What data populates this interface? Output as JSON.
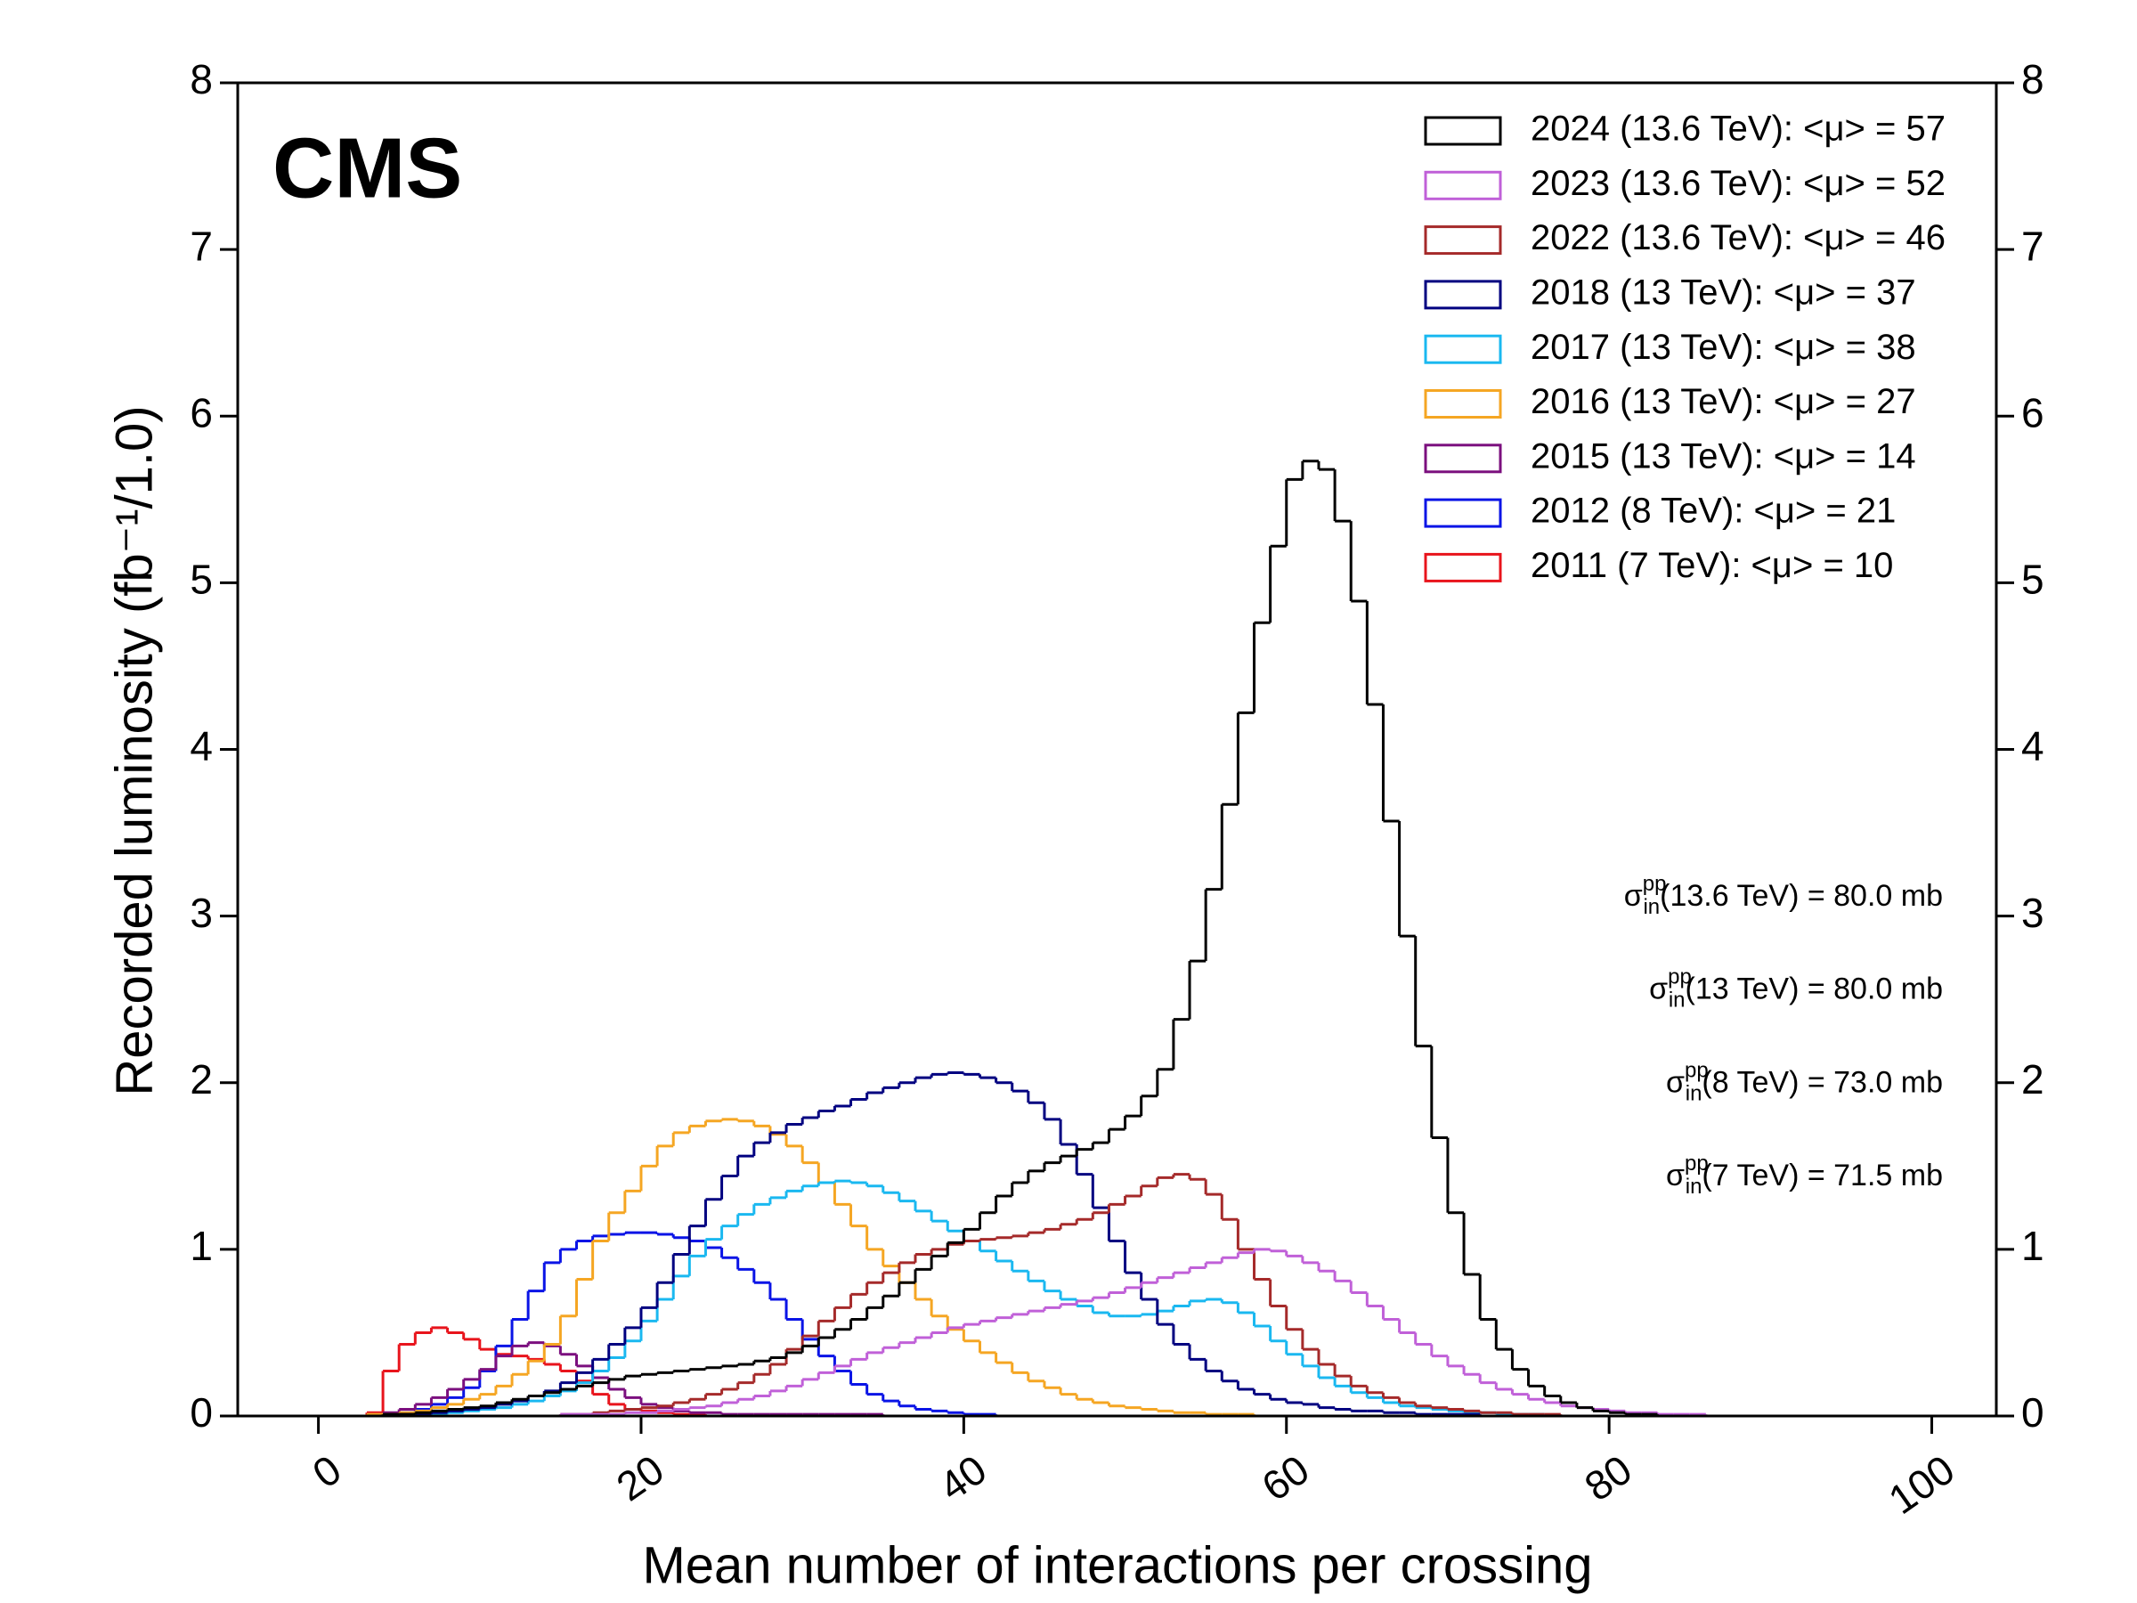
{
  "chart_data": {
    "type": "histogram",
    "title": "CMS",
    "x_label": "Mean number of interactions per crossing",
    "y_label": "Recorded luminosity (fb⁻¹/1.0)",
    "xlim": [
      -5,
      104
    ],
    "ylim": [
      0,
      8
    ],
    "xticks": [
      0,
      20,
      40,
      60,
      80,
      100
    ],
    "yticks": [
      0,
      1,
      2,
      3,
      4,
      5,
      6,
      7,
      8
    ],
    "right_axis": true,
    "legend": "upper right",
    "bins": [
      0,
      1,
      2,
      3,
      4,
      5,
      6,
      7,
      8,
      9,
      10,
      11,
      12,
      13,
      14,
      15,
      16,
      17,
      18,
      19,
      20,
      21,
      22,
      23,
      24,
      25,
      26,
      27,
      28,
      29,
      30,
      31,
      32,
      33,
      34,
      35,
      36,
      37,
      38,
      39,
      40,
      41,
      42,
      43,
      44,
      45,
      46,
      47,
      48,
      49,
      50,
      51,
      52,
      53,
      54,
      55,
      56,
      57,
      58,
      59,
      60,
      61,
      62,
      63,
      64,
      65,
      66,
      67,
      68,
      69,
      70,
      71,
      72,
      73,
      74,
      75,
      76,
      77,
      78,
      79,
      80,
      81,
      82,
      83,
      84,
      85,
      86,
      87,
      88,
      89,
      90,
      91,
      92,
      93,
      94,
      95,
      96,
      97,
      98,
      99,
      100
    ],
    "series": [
      {
        "name": "2024 (13.6 TeV): <μ> = 57",
        "color": "#000000",
        "values": [
          0,
          0,
          0,
          0,
          0.01,
          0.01,
          0.02,
          0.03,
          0.04,
          0.05,
          0.06,
          0.08,
          0.1,
          0.12,
          0.14,
          0.16,
          0.18,
          0.2,
          0.22,
          0.24,
          0.25,
          0.26,
          0.27,
          0.28,
          0.29,
          0.3,
          0.31,
          0.33,
          0.35,
          0.38,
          0.42,
          0.47,
          0.52,
          0.58,
          0.65,
          0.72,
          0.8,
          0.88,
          0.96,
          1.04,
          1.12,
          1.22,
          1.32,
          1.4,
          1.47,
          1.52,
          1.56,
          1.6,
          1.64,
          1.72,
          1.8,
          1.92,
          2.08,
          2.38,
          2.73,
          3.16,
          3.67,
          4.22,
          4.76,
          5.22,
          5.62,
          5.73,
          5.68,
          5.37,
          4.89,
          4.27,
          3.57,
          2.88,
          2.22,
          1.67,
          1.22,
          0.85,
          0.58,
          0.4,
          0.28,
          0.18,
          0.12,
          0.08,
          0.05,
          0.03,
          0.02,
          0.01,
          0.01,
          0,
          0,
          0,
          0,
          0,
          0,
          0,
          0,
          0,
          0,
          0,
          0,
          0,
          0,
          0,
          0,
          0
        ]
      },
      {
        "name": "2023 (13.6 TeV): <μ> = 52",
        "color": "#c060d8",
        "values": [
          0,
          0,
          0,
          0,
          0,
          0,
          0,
          0,
          0,
          0,
          0,
          0,
          0,
          0,
          0,
          0.01,
          0.01,
          0.01,
          0.01,
          0.02,
          0.02,
          0.03,
          0.04,
          0.05,
          0.06,
          0.08,
          0.1,
          0.12,
          0.15,
          0.18,
          0.22,
          0.26,
          0.3,
          0.34,
          0.38,
          0.41,
          0.44,
          0.47,
          0.5,
          0.53,
          0.55,
          0.57,
          0.59,
          0.61,
          0.63,
          0.65,
          0.67,
          0.69,
          0.71,
          0.74,
          0.77,
          0.8,
          0.83,
          0.86,
          0.89,
          0.92,
          0.95,
          0.98,
          1.0,
          0.99,
          0.96,
          0.92,
          0.87,
          0.81,
          0.74,
          0.66,
          0.58,
          0.5,
          0.43,
          0.36,
          0.3,
          0.25,
          0.2,
          0.16,
          0.13,
          0.1,
          0.08,
          0.06,
          0.05,
          0.04,
          0.03,
          0.02,
          0.02,
          0.01,
          0.01,
          0.01,
          0,
          0,
          0,
          0,
          0,
          0,
          0,
          0,
          0,
          0,
          0,
          0,
          0,
          0
        ]
      },
      {
        "name": "2022 (13.6 TeV): <μ> = 46",
        "color": "#a52a2a",
        "values": [
          0,
          0,
          0,
          0,
          0,
          0,
          0,
          0,
          0,
          0,
          0,
          0,
          0,
          0,
          0,
          0.01,
          0.01,
          0.02,
          0.03,
          0.04,
          0.05,
          0.06,
          0.08,
          0.1,
          0.13,
          0.16,
          0.2,
          0.25,
          0.31,
          0.4,
          0.48,
          0.57,
          0.65,
          0.73,
          0.8,
          0.86,
          0.92,
          0.97,
          1.0,
          1.03,
          1.05,
          1.06,
          1.07,
          1.08,
          1.1,
          1.12,
          1.15,
          1.18,
          1.22,
          1.27,
          1.32,
          1.38,
          1.43,
          1.45,
          1.42,
          1.33,
          1.18,
          1.0,
          0.82,
          0.66,
          0.52,
          0.4,
          0.31,
          0.24,
          0.18,
          0.14,
          0.11,
          0.08,
          0.06,
          0.05,
          0.04,
          0.03,
          0.02,
          0.02,
          0.01,
          0.01,
          0.01,
          0,
          0,
          0,
          0,
          0,
          0,
          0,
          0,
          0,
          0,
          0,
          0,
          0,
          0,
          0,
          0,
          0,
          0,
          0,
          0,
          0,
          0,
          0
        ]
      },
      {
        "name": "2018 (13 TeV): <μ> = 37",
        "color": "#000080",
        "values": [
          0,
          0,
          0,
          0,
          0,
          0.01,
          0.01,
          0.02,
          0.03,
          0.04,
          0.05,
          0.07,
          0.09,
          0.12,
          0.15,
          0.2,
          0.26,
          0.34,
          0.43,
          0.53,
          0.65,
          0.8,
          0.97,
          1.14,
          1.3,
          1.44,
          1.56,
          1.64,
          1.7,
          1.75,
          1.79,
          1.83,
          1.86,
          1.9,
          1.94,
          1.97,
          2.0,
          2.03,
          2.05,
          2.06,
          2.05,
          2.03,
          2.0,
          1.95,
          1.88,
          1.78,
          1.63,
          1.45,
          1.25,
          1.05,
          0.86,
          0.7,
          0.55,
          0.43,
          0.34,
          0.27,
          0.21,
          0.16,
          0.13,
          0.1,
          0.08,
          0.07,
          0.05,
          0.04,
          0.03,
          0.03,
          0.02,
          0.02,
          0.01,
          0.01,
          0.01,
          0.01,
          0,
          0,
          0,
          0,
          0,
          0,
          0,
          0,
          0,
          0,
          0,
          0,
          0,
          0,
          0,
          0,
          0,
          0,
          0,
          0,
          0,
          0,
          0,
          0,
          0,
          0,
          0,
          0
        ]
      },
      {
        "name": "2017 (13 TeV): <μ> = 38",
        "color": "#1ab8f0",
        "values": [
          0,
          0,
          0,
          0,
          0,
          0,
          0,
          0.01,
          0.02,
          0.03,
          0.04,
          0.05,
          0.07,
          0.09,
          0.12,
          0.15,
          0.2,
          0.27,
          0.35,
          0.45,
          0.57,
          0.7,
          0.84,
          0.96,
          1.06,
          1.14,
          1.21,
          1.27,
          1.31,
          1.35,
          1.38,
          1.4,
          1.41,
          1.4,
          1.38,
          1.34,
          1.29,
          1.23,
          1.17,
          1.11,
          1.05,
          0.99,
          0.93,
          0.87,
          0.81,
          0.75,
          0.7,
          0.66,
          0.62,
          0.6,
          0.6,
          0.61,
          0.63,
          0.66,
          0.69,
          0.7,
          0.68,
          0.62,
          0.54,
          0.45,
          0.37,
          0.3,
          0.23,
          0.18,
          0.14,
          0.11,
          0.08,
          0.06,
          0.05,
          0.04,
          0.03,
          0.02,
          0.02,
          0.01,
          0.01,
          0.01,
          0,
          0,
          0,
          0,
          0,
          0,
          0,
          0,
          0,
          0,
          0,
          0,
          0,
          0,
          0,
          0,
          0,
          0,
          0,
          0,
          0,
          0,
          0,
          0
        ]
      },
      {
        "name": "2016 (13 TeV): <μ> = 27",
        "color": "#f5a623",
        "values": [
          0,
          0,
          0,
          0.01,
          0.01,
          0.02,
          0.03,
          0.05,
          0.07,
          0.1,
          0.13,
          0.18,
          0.25,
          0.33,
          0.43,
          0.6,
          0.82,
          1.05,
          1.22,
          1.35,
          1.5,
          1.62,
          1.7,
          1.74,
          1.77,
          1.78,
          1.77,
          1.74,
          1.69,
          1.62,
          1.52,
          1.4,
          1.27,
          1.14,
          1.0,
          0.9,
          0.8,
          0.7,
          0.6,
          0.52,
          0.45,
          0.38,
          0.32,
          0.26,
          0.21,
          0.17,
          0.13,
          0.1,
          0.08,
          0.06,
          0.05,
          0.04,
          0.03,
          0.02,
          0.02,
          0.01,
          0.01,
          0.01,
          0,
          0,
          0,
          0,
          0,
          0,
          0,
          0,
          0,
          0,
          0,
          0,
          0,
          0,
          0,
          0,
          0,
          0,
          0,
          0,
          0,
          0,
          0,
          0,
          0,
          0,
          0,
          0,
          0,
          0,
          0,
          0,
          0,
          0,
          0,
          0,
          0,
          0,
          0,
          0,
          0,
          0
        ]
      },
      {
        "name": "2015 (13 TeV): <μ> = 14",
        "color": "#7b0f7e",
        "values": [
          0,
          0,
          0,
          0.01,
          0.02,
          0.04,
          0.07,
          0.11,
          0.16,
          0.22,
          0.28,
          0.36,
          0.42,
          0.44,
          0.42,
          0.37,
          0.3,
          0.23,
          0.16,
          0.11,
          0.07,
          0.05,
          0.03,
          0.02,
          0.02,
          0.01,
          0.01,
          0.01,
          0.01,
          0.01,
          0.01,
          0.01,
          0.01,
          0.01,
          0.01,
          0,
          0,
          0,
          0,
          0,
          0,
          0,
          0,
          0,
          0,
          0,
          0,
          0,
          0,
          0,
          0,
          0,
          0,
          0,
          0,
          0,
          0,
          0,
          0,
          0,
          0,
          0,
          0,
          0,
          0,
          0,
          0,
          0,
          0,
          0,
          0,
          0,
          0,
          0,
          0,
          0,
          0,
          0,
          0,
          0,
          0,
          0,
          0,
          0,
          0,
          0,
          0,
          0,
          0,
          0,
          0,
          0,
          0,
          0,
          0,
          0,
          0,
          0,
          0,
          0
        ]
      },
      {
        "name": "2012 (8 TeV): <μ> = 21",
        "color": "#0a14e6",
        "values": [
          0,
          0,
          0,
          0,
          0,
          0.02,
          0.04,
          0.07,
          0.11,
          0.17,
          0.27,
          0.42,
          0.58,
          0.75,
          0.92,
          1.0,
          1.05,
          1.08,
          1.09,
          1.1,
          1.1,
          1.09,
          1.07,
          1.05,
          1.01,
          0.95,
          0.88,
          0.8,
          0.7,
          0.58,
          0.46,
          0.36,
          0.27,
          0.19,
          0.13,
          0.09,
          0.06,
          0.04,
          0.03,
          0.02,
          0.01,
          0.01,
          0,
          0,
          0,
          0,
          0,
          0,
          0,
          0,
          0,
          0,
          0,
          0,
          0,
          0,
          0,
          0,
          0,
          0,
          0,
          0,
          0,
          0,
          0,
          0,
          0,
          0,
          0,
          0,
          0,
          0,
          0,
          0,
          0,
          0,
          0,
          0,
          0,
          0,
          0,
          0,
          0,
          0,
          0,
          0,
          0,
          0,
          0,
          0,
          0,
          0,
          0,
          0,
          0,
          0,
          0,
          0,
          0,
          0
        ]
      },
      {
        "name": "2011 (7 TeV): <μ> = 10",
        "color": "#e8141c",
        "values": [
          0,
          0,
          0,
          0.02,
          0.27,
          0.43,
          0.5,
          0.53,
          0.5,
          0.46,
          0.4,
          0.37,
          0.36,
          0.34,
          0.31,
          0.27,
          0.21,
          0.13,
          0.07,
          0.04,
          0.03,
          0.02,
          0.01,
          0.01,
          0,
          0,
          0,
          0,
          0,
          0,
          0,
          0,
          0,
          0,
          0,
          0,
          0,
          0,
          0,
          0,
          0,
          0,
          0,
          0,
          0,
          0,
          0,
          0,
          0,
          0,
          0,
          0,
          0,
          0,
          0,
          0,
          0,
          0,
          0,
          0,
          0,
          0,
          0,
          0,
          0,
          0,
          0,
          0,
          0,
          0,
          0,
          0,
          0,
          0,
          0,
          0,
          0,
          0,
          0,
          0,
          0,
          0,
          0,
          0,
          0,
          0,
          0,
          0,
          0,
          0,
          0,
          0,
          0,
          0,
          0,
          0,
          0,
          0,
          0,
          0
        ]
      }
    ],
    "annotations": [
      {
        "symbol": "σ",
        "sup": "pp",
        "sub": "in",
        "text": "(13.6 TeV) = 80.0 mb"
      },
      {
        "symbol": "σ",
        "sup": "pp",
        "sub": "in",
        "text": "(13 TeV) = 80.0 mb"
      },
      {
        "symbol": "σ",
        "sup": "pp",
        "sub": "in",
        "text": "(8 TeV) = 73.0 mb"
      },
      {
        "symbol": "σ",
        "sup": "pp",
        "sub": "in",
        "text": "(7 TeV) = 71.5 mb"
      }
    ]
  }
}
